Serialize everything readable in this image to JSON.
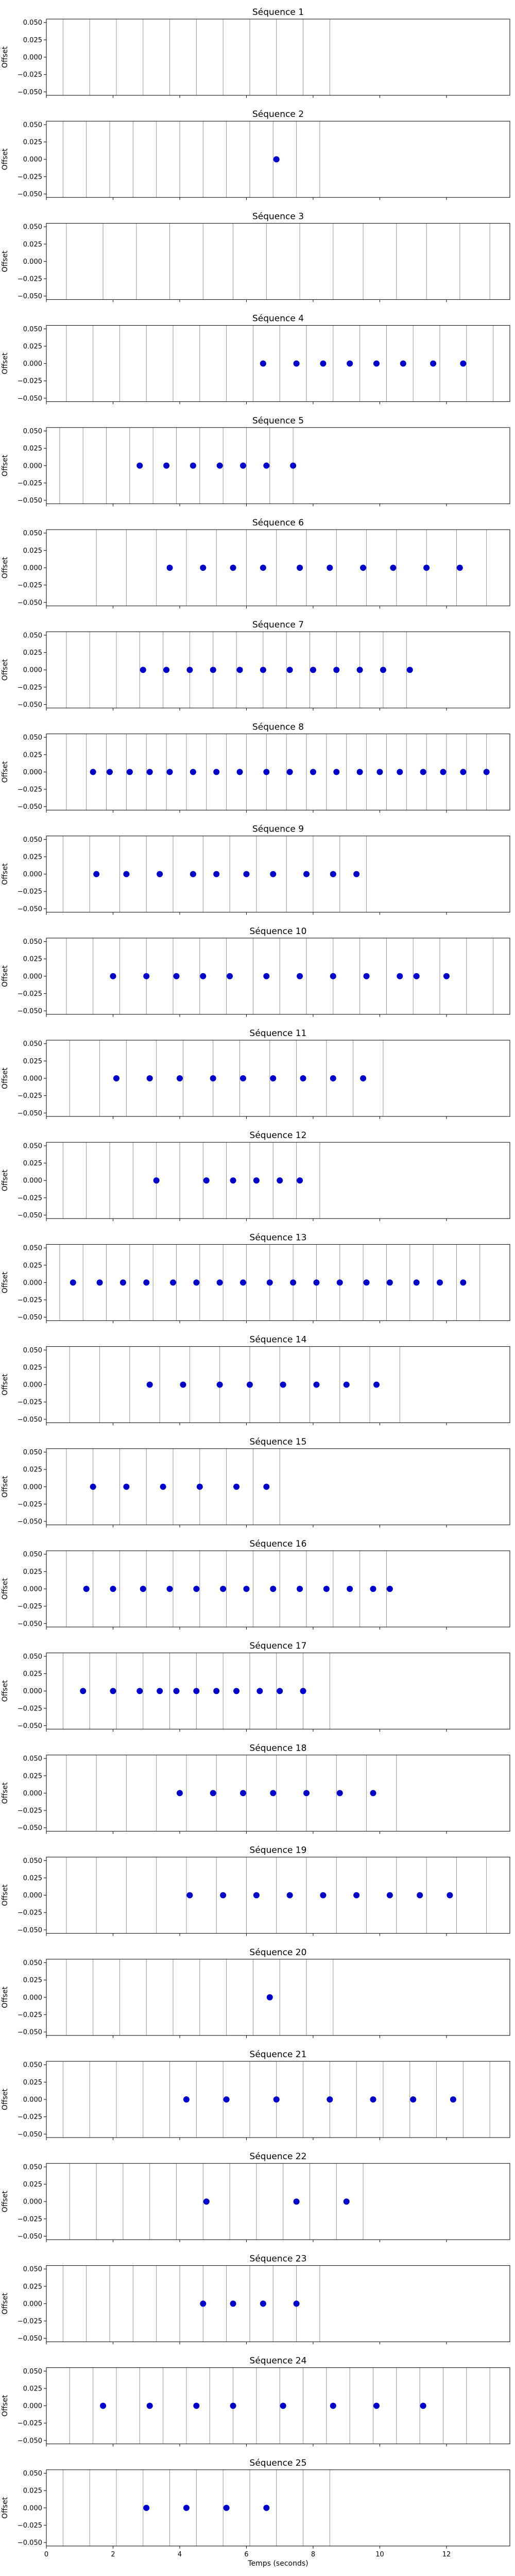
{
  "figure": {
    "xlabel": "Temps (seconds)",
    "ylabel": "Offset",
    "colors": {
      "dot": "#0000cc",
      "gridline": "#888888",
      "axis": "#000000"
    }
  },
  "chart_data": [
    {
      "type": "scatter",
      "title": "Séquence 1",
      "xlim": [
        0,
        13.9
      ],
      "ylim": [
        -0.055,
        0.055
      ],
      "yticks": [
        "0.050",
        "0.025",
        "0.000",
        "−0.025",
        "−0.050"
      ],
      "vlines": [
        0.5,
        1.3,
        2.1,
        2.9,
        3.7,
        4.5,
        5.3,
        6.1,
        6.9,
        7.7,
        8.5
      ],
      "x": [],
      "y": []
    },
    {
      "type": "scatter",
      "title": "Séquence 2",
      "xlim": [
        0,
        13.9
      ],
      "ylim": [
        -0.055,
        0.055
      ],
      "yticks": [
        "0.050",
        "0.025",
        "0.000",
        "−0.025",
        "−0.050"
      ],
      "vlines": [
        0.5,
        1.2,
        1.9,
        2.6,
        3.3,
        4.0,
        4.7,
        5.4,
        6.1,
        6.8,
        7.5,
        8.2
      ],
      "x": [
        6.9
      ],
      "y": [
        0
      ]
    },
    {
      "type": "scatter",
      "title": "Séquence 3",
      "xlim": [
        0,
        13.9
      ],
      "ylim": [
        -0.055,
        0.055
      ],
      "yticks": [
        "0.050",
        "0.025",
        "0.000",
        "−0.025",
        "−0.050"
      ],
      "vlines": [
        0.6,
        1.7,
        2.7,
        3.7,
        4.7,
        5.6,
        6.6,
        7.6,
        8.6,
        9.5,
        10.5,
        11.4,
        12.4,
        13.3
      ],
      "x": [],
      "y": []
    },
    {
      "type": "scatter",
      "title": "Séquence 4",
      "xlim": [
        0,
        13.9
      ],
      "ylim": [
        -0.055,
        0.055
      ],
      "yticks": [
        "0.050",
        "0.025",
        "0.000",
        "−0.025",
        "−0.050"
      ],
      "vlines": [
        0.6,
        1.4,
        2.2,
        3.0,
        3.8,
        4.6,
        5.4,
        6.2,
        7.0,
        7.8,
        8.6,
        9.4,
        10.2,
        11.0,
        11.8,
        12.6,
        13.4
      ],
      "x": [
        6.5,
        7.5,
        8.3,
        9.1,
        9.9,
        10.7,
        11.6,
        12.5
      ],
      "y": [
        0,
        0,
        0,
        0,
        0,
        0,
        0,
        0
      ]
    },
    {
      "type": "scatter",
      "title": "Séquence 5",
      "xlim": [
        0,
        13.9
      ],
      "ylim": [
        -0.055,
        0.055
      ],
      "yticks": [
        "0.050",
        "0.025",
        "0.000",
        "−0.025",
        "−0.050"
      ],
      "vlines": [
        0.4,
        1.1,
        1.8,
        2.5,
        3.2,
        3.9,
        4.6,
        5.3,
        6.0,
        6.7,
        7.4
      ],
      "x": [
        2.8,
        3.6,
        4.4,
        5.2,
        5.9,
        6.6,
        7.4
      ],
      "y": [
        0,
        0,
        0,
        0,
        0,
        0,
        0
      ]
    },
    {
      "type": "scatter",
      "title": "Séquence 6",
      "xlim": [
        0,
        13.9
      ],
      "ylim": [
        -0.055,
        0.055
      ],
      "yticks": [
        "0.050",
        "0.025",
        "0.000",
        "−0.025",
        "−0.050"
      ],
      "vlines": [
        1.5,
        2.4,
        3.3,
        4.2,
        5.1,
        6.0,
        6.9,
        7.8,
        8.7,
        9.6,
        10.5,
        11.4,
        12.3,
        13.2
      ],
      "x": [
        3.7,
        4.7,
        5.6,
        6.5,
        7.6,
        8.5,
        9.5,
        10.4,
        11.4,
        12.4
      ],
      "y": [
        0,
        0,
        0,
        0,
        0,
        0,
        0,
        0,
        0,
        0
      ]
    },
    {
      "type": "scatter",
      "title": "Séquence 7",
      "xlim": [
        0,
        13.9
      ],
      "ylim": [
        -0.055,
        0.055
      ],
      "yticks": [
        "0.050",
        "0.025",
        "0.000",
        "−0.025",
        "−0.050"
      ],
      "vlines": [
        0.6,
        1.3,
        2.1,
        2.8,
        3.5,
        4.3,
        5.0,
        5.7,
        6.5,
        7.2,
        7.9,
        8.7,
        9.4,
        10.1,
        10.8
      ],
      "x": [
        2.9,
        3.6,
        4.3,
        5.0,
        5.8,
        6.5,
        7.3,
        8.0,
        8.7,
        9.4,
        10.1,
        10.9
      ],
      "y": [
        0,
        0,
        0,
        0,
        0,
        0,
        0,
        0,
        0,
        0,
        0,
        0
      ]
    },
    {
      "type": "scatter",
      "title": "Séquence 8",
      "xlim": [
        0,
        13.9
      ],
      "ylim": [
        -0.055,
        0.055
      ],
      "yticks": [
        "0.050",
        "0.025",
        "0.000",
        "−0.025",
        "−0.050"
      ],
      "vlines": [
        0.6,
        1.2,
        1.8,
        2.4,
        3.0,
        3.6,
        4.2,
        4.8,
        5.4,
        6.0,
        6.6,
        7.2,
        7.8,
        8.4,
        9.0,
        9.6,
        10.2,
        10.8,
        11.4,
        12.0,
        12.6,
        13.2
      ],
      "x": [
        1.4,
        1.9,
        2.5,
        3.1,
        3.7,
        4.4,
        5.1,
        5.8,
        6.6,
        7.3,
        8.0,
        8.7,
        9.4,
        10.0,
        10.6,
        11.3,
        11.9,
        12.5,
        13.2
      ],
      "y": [
        0,
        0,
        0,
        0,
        0,
        0,
        0,
        0,
        0,
        0,
        0,
        0,
        0,
        0,
        0,
        0,
        0,
        0,
        0
      ]
    },
    {
      "type": "scatter",
      "title": "Séquence 9",
      "xlim": [
        0,
        13.9
      ],
      "ylim": [
        -0.055,
        0.055
      ],
      "yticks": [
        "0.050",
        "0.025",
        "0.000",
        "−0.025",
        "−0.050"
      ],
      "vlines": [
        0.5,
        1.3,
        2.2,
        3.0,
        3.8,
        4.7,
        5.5,
        6.3,
        7.2,
        8.0,
        8.8,
        9.6
      ],
      "x": [
        1.5,
        2.4,
        3.4,
        4.4,
        5.1,
        6.0,
        6.8,
        7.8,
        8.6,
        9.3
      ],
      "y": [
        0,
        0,
        0,
        0,
        0,
        0,
        0,
        0,
        0,
        0
      ]
    },
    {
      "type": "scatter",
      "title": "Séquence 10",
      "xlim": [
        0,
        13.9
      ],
      "ylim": [
        -0.055,
        0.055
      ],
      "yticks": [
        "0.050",
        "0.025",
        "0.000",
        "−0.025",
        "−0.050"
      ],
      "vlines": [
        0.6,
        1.4,
        2.2,
        3.0,
        3.8,
        4.6,
        5.4,
        6.2,
        7.0,
        7.8,
        8.6,
        9.4,
        10.2,
        11.0,
        11.8,
        12.6,
        13.4
      ],
      "x": [
        2.0,
        3.0,
        3.9,
        4.7,
        5.5,
        6.6,
        7.6,
        8.6,
        9.6,
        10.6,
        11.1,
        12.0
      ],
      "y": [
        0,
        0,
        0,
        0,
        0,
        0,
        0,
        0,
        0,
        0,
        0,
        0
      ]
    },
    {
      "type": "scatter",
      "title": "Séquence 11",
      "xlim": [
        0,
        13.9
      ],
      "ylim": [
        -0.055,
        0.055
      ],
      "yticks": [
        "0.050",
        "0.025",
        "0.000",
        "−0.025",
        "−0.050"
      ],
      "vlines": [
        0.7,
        1.6,
        2.4,
        3.3,
        4.1,
        5.0,
        5.8,
        6.7,
        7.5,
        8.4,
        9.2,
        10.1
      ],
      "x": [
        2.1,
        3.1,
        4.0,
        5.0,
        5.9,
        6.8,
        7.7,
        8.6,
        9.5
      ],
      "y": [
        0,
        0,
        0,
        0,
        0,
        0,
        0,
        0,
        0
      ]
    },
    {
      "type": "scatter",
      "title": "Séquence 12",
      "xlim": [
        0,
        13.9
      ],
      "ylim": [
        -0.055,
        0.055
      ],
      "yticks": [
        "0.050",
        "0.025",
        "0.000",
        "−0.025",
        "−0.050"
      ],
      "vlines": [
        0.5,
        1.2,
        1.9,
        2.6,
        3.3,
        4.0,
        4.7,
        5.4,
        6.1,
        6.8,
        7.5,
        8.2
      ],
      "x": [
        3.3,
        4.8,
        5.6,
        6.3,
        7.0,
        7.6
      ],
      "y": [
        0,
        0,
        0,
        0,
        0,
        0
      ]
    },
    {
      "type": "scatter",
      "title": "Séquence 13",
      "xlim": [
        0,
        13.9
      ],
      "ylim": [
        -0.055,
        0.055
      ],
      "yticks": [
        "0.050",
        "0.025",
        "0.000",
        "−0.025",
        "−0.050"
      ],
      "vlines": [
        0.4,
        1.1,
        1.8,
        2.5,
        3.2,
        3.9,
        4.6,
        5.3,
        6.0,
        6.7,
        7.4,
        8.1,
        8.8,
        9.5,
        10.2,
        10.9,
        11.6,
        12.3,
        13.0
      ],
      "x": [
        0.8,
        1.6,
        2.3,
        3.0,
        3.8,
        4.5,
        5.2,
        5.9,
        6.7,
        7.4,
        8.1,
        8.8,
        9.6,
        10.3,
        11.1,
        11.8,
        12.5
      ],
      "y": [
        0,
        0,
        0,
        0,
        0,
        0,
        0,
        0,
        0,
        0,
        0,
        0,
        0,
        0,
        0,
        0,
        0
      ]
    },
    {
      "type": "scatter",
      "title": "Séquence 14",
      "xlim": [
        0,
        13.9
      ],
      "ylim": [
        -0.055,
        0.055
      ],
      "yticks": [
        "0.050",
        "0.025",
        "0.000",
        "−0.025",
        "−0.050"
      ],
      "vlines": [
        0.7,
        1.6,
        2.5,
        3.4,
        4.3,
        5.2,
        6.1,
        7.0,
        7.9,
        8.8,
        9.7,
        10.6
      ],
      "x": [
        3.1,
        4.1,
        5.2,
        6.1,
        7.1,
        8.1,
        9.0,
        9.9
      ],
      "y": [
        0,
        0,
        0,
        0,
        0,
        0,
        0,
        0
      ]
    },
    {
      "type": "scatter",
      "title": "Séquence 15",
      "xlim": [
        0,
        13.9
      ],
      "ylim": [
        -0.055,
        0.055
      ],
      "yticks": [
        "0.050",
        "0.025",
        "0.000",
        "−0.025",
        "−0.050"
      ],
      "vlines": [
        0.6,
        1.4,
        2.2,
        3.0,
        3.8,
        4.6,
        5.4,
        6.2,
        7.0
      ],
      "x": [
        1.4,
        2.4,
        3.5,
        4.6,
        5.7,
        6.6
      ],
      "y": [
        0,
        0,
        0,
        0,
        0,
        0
      ]
    },
    {
      "type": "scatter",
      "title": "Séquence 16",
      "xlim": [
        0,
        13.9
      ],
      "ylim": [
        -0.055,
        0.055
      ],
      "yticks": [
        "0.050",
        "0.025",
        "0.000",
        "−0.025",
        "−0.050"
      ],
      "vlines": [
        0.6,
        1.4,
        2.2,
        3.0,
        3.8,
        4.6,
        5.4,
        6.2,
        7.0,
        7.8,
        8.6,
        9.4,
        10.2
      ],
      "x": [
        1.2,
        2.0,
        2.9,
        3.7,
        4.5,
        5.3,
        6.0,
        6.8,
        7.6,
        8.4,
        9.1,
        9.8,
        10.3
      ],
      "y": [
        0,
        0,
        0,
        0,
        0,
        0,
        0,
        0,
        0,
        0,
        0,
        0,
        0
      ]
    },
    {
      "type": "scatter",
      "title": "Séquence 17",
      "xlim": [
        0,
        13.9
      ],
      "ylim": [
        -0.055,
        0.055
      ],
      "yticks": [
        "0.050",
        "0.025",
        "0.000",
        "−0.025",
        "−0.050"
      ],
      "vlines": [
        0.5,
        1.3,
        2.1,
        2.9,
        3.7,
        4.5,
        5.3,
        6.1,
        6.9,
        7.7,
        8.5
      ],
      "x": [
        1.1,
        2.0,
        2.8,
        3.4,
        3.9,
        4.5,
        5.1,
        5.7,
        6.4,
        7.0,
        7.7
      ],
      "y": [
        0,
        0,
        0,
        0,
        0,
        0,
        0,
        0,
        0,
        0,
        0
      ]
    },
    {
      "type": "scatter",
      "title": "Séquence 18",
      "xlim": [
        0,
        13.9
      ],
      "ylim": [
        -0.055,
        0.055
      ],
      "yticks": [
        "0.050",
        "0.025",
        "0.000",
        "−0.025",
        "−0.050"
      ],
      "vlines": [
        0.6,
        1.5,
        2.4,
        3.3,
        4.2,
        5.1,
        6.0,
        6.9,
        7.8,
        8.7,
        9.6,
        10.5
      ],
      "x": [
        4.0,
        5.0,
        5.9,
        6.8,
        7.8,
        8.8,
        9.8
      ],
      "y": [
        0,
        0,
        0,
        0,
        0,
        0,
        0
      ]
    },
    {
      "type": "scatter",
      "title": "Séquence 19",
      "xlim": [
        0,
        13.9
      ],
      "ylim": [
        -0.055,
        0.055
      ],
      "yticks": [
        "0.050",
        "0.025",
        "0.000",
        "−0.025",
        "−0.050"
      ],
      "vlines": [
        0.6,
        1.5,
        2.4,
        3.3,
        4.2,
        5.1,
        6.0,
        6.9,
        7.8,
        8.7,
        9.6,
        10.5,
        11.4,
        12.3,
        13.2
      ],
      "x": [
        4.3,
        5.3,
        6.3,
        7.3,
        8.3,
        9.3,
        10.3,
        11.2,
        12.1
      ],
      "y": [
        0,
        0,
        0,
        0,
        0,
        0,
        0,
        0,
        0
      ]
    },
    {
      "type": "scatter",
      "title": "Séquence 20",
      "xlim": [
        0,
        13.9
      ],
      "ylim": [
        -0.055,
        0.055
      ],
      "yticks": [
        "0.050",
        "0.025",
        "0.000",
        "−0.025",
        "−0.050"
      ],
      "vlines": [
        0.6,
        1.4,
        2.2,
        3.0,
        3.8,
        4.6,
        5.4,
        6.2,
        7.0,
        7.8,
        8.6
      ],
      "x": [
        6.7
      ],
      "y": [
        0
      ]
    },
    {
      "type": "scatter",
      "title": "Séquence 21",
      "xlim": [
        0,
        13.9
      ],
      "ylim": [
        -0.055,
        0.055
      ],
      "yticks": [
        "0.050",
        "0.025",
        "0.000",
        "−0.025",
        "−0.050"
      ],
      "vlines": [
        0.5,
        1.3,
        2.1,
        2.9,
        3.7,
        4.5,
        5.3,
        6.1,
        6.9,
        7.7,
        8.5,
        9.3,
        10.1,
        10.9,
        11.7,
        12.5,
        13.3
      ],
      "x": [
        4.2,
        5.4,
        6.9,
        8.5,
        9.8,
        11.0,
        12.2
      ],
      "y": [
        0,
        0,
        0,
        0,
        0,
        0,
        0
      ]
    },
    {
      "type": "scatter",
      "title": "Séquence 22",
      "xlim": [
        0,
        13.9
      ],
      "ylim": [
        -0.055,
        0.055
      ],
      "yticks": [
        "0.050",
        "0.025",
        "0.000",
        "−0.025",
        "−0.050"
      ],
      "vlines": [
        0.7,
        1.5,
        2.3,
        3.1,
        3.9,
        4.7,
        5.5,
        6.3,
        7.1,
        7.9,
        8.7,
        9.5
      ],
      "x": [
        4.8,
        7.5,
        9.0
      ],
      "y": [
        0,
        0,
        0
      ]
    },
    {
      "type": "scatter",
      "title": "Séquence 23",
      "xlim": [
        0,
        13.9
      ],
      "ylim": [
        -0.055,
        0.055
      ],
      "yticks": [
        "0.050",
        "0.025",
        "0.000",
        "−0.025",
        "−0.050"
      ],
      "vlines": [
        0.5,
        1.2,
        1.9,
        2.6,
        3.3,
        4.0,
        4.7,
        5.4,
        6.1,
        6.8,
        7.5,
        8.2
      ],
      "x": [
        4.7,
        5.6,
        6.5,
        7.5
      ],
      "y": [
        0,
        0,
        0,
        0
      ]
    },
    {
      "type": "scatter",
      "title": "Séquence 24",
      "xlim": [
        0,
        13.9
      ],
      "ylim": [
        -0.055,
        0.055
      ],
      "yticks": [
        "0.050",
        "0.025",
        "0.000",
        "−0.025",
        "−0.050"
      ],
      "vlines": [
        0.7,
        1.4,
        2.1,
        2.8,
        3.5,
        4.2,
        4.9,
        5.6,
        6.3,
        7.0,
        7.7,
        8.4,
        9.1,
        9.8,
        10.5,
        11.2,
        11.9,
        12.6,
        13.3
      ],
      "x": [
        1.7,
        3.1,
        4.5,
        5.6,
        7.1,
        8.6,
        9.9,
        11.3
      ],
      "y": [
        0,
        0,
        0,
        0,
        0,
        0,
        0,
        0
      ]
    },
    {
      "type": "scatter",
      "title": "Séquence 25",
      "xlim": [
        0,
        13.9
      ],
      "ylim": [
        -0.055,
        0.055
      ],
      "yticks": [
        "0.050",
        "0.025",
        "0.000",
        "−0.025",
        "−0.050"
      ],
      "vlines": [
        0.5,
        1.3,
        2.1,
        2.9,
        3.7,
        4.5,
        5.3,
        6.1,
        6.9,
        7.7,
        8.5
      ],
      "xticks": [
        "0",
        "2",
        "4",
        "6",
        "8",
        "10",
        "12"
      ],
      "x": [
        3.0,
        4.2,
        5.4,
        6.6
      ],
      "y": [
        0,
        0,
        0,
        0
      ]
    }
  ]
}
